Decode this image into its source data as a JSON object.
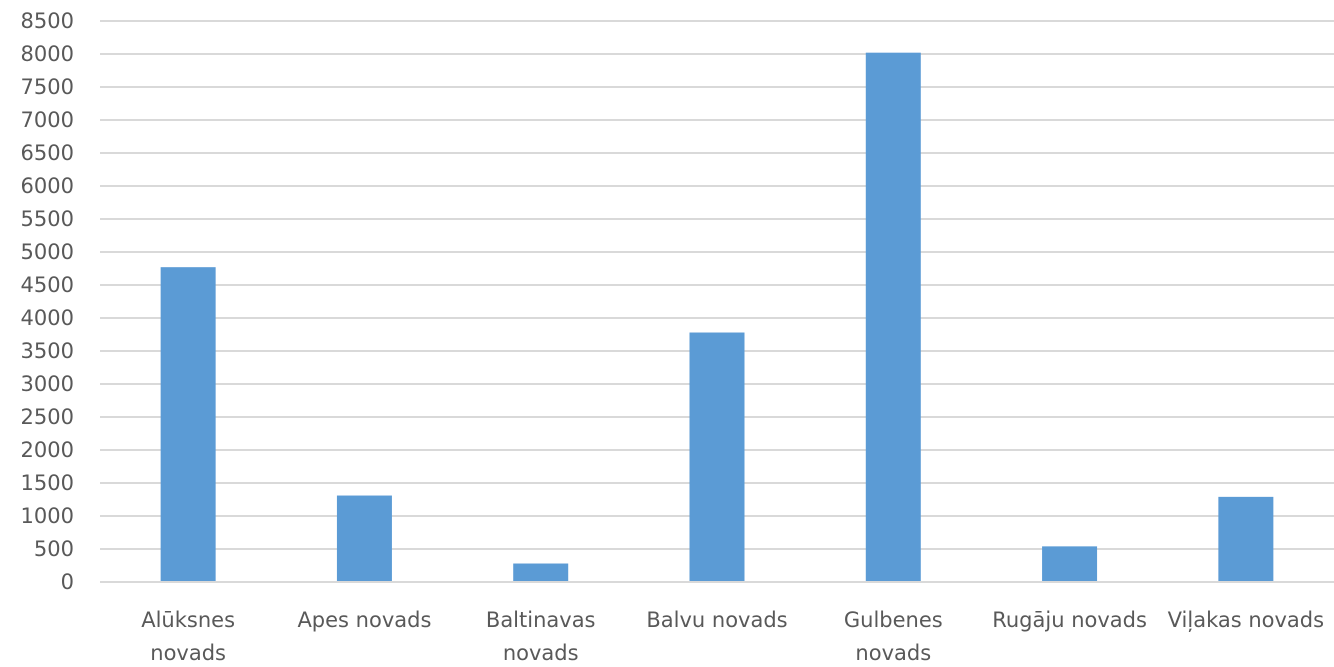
{
  "chart_data": {
    "type": "bar",
    "categories": [
      [
        "Alūksnes",
        "novads"
      ],
      [
        "Apes novads"
      ],
      [
        "Baltinavas",
        "novads"
      ],
      [
        "Balvu novads"
      ],
      [
        "Gulbenes",
        "novads"
      ],
      [
        "Rugāju novads"
      ],
      [
        "Viļakas novads"
      ]
    ],
    "values": [
      4770,
      1310,
      280,
      3780,
      8020,
      540,
      1290
    ],
    "ylim": [
      0,
      8500
    ],
    "yticks": [
      "0",
      "500",
      "1000",
      "1500",
      "2000",
      "2500",
      "3000",
      "3500",
      "4000",
      "4500",
      "5000",
      "5500",
      "6000",
      "6500",
      "7000",
      "7500",
      "8000",
      "8500"
    ],
    "grid": true,
    "legend": "none",
    "colors": {
      "bar": "#5b9bd5",
      "grid": "#d9d9d9",
      "text": "#595959",
      "axis": "#d9d9d9"
    }
  }
}
